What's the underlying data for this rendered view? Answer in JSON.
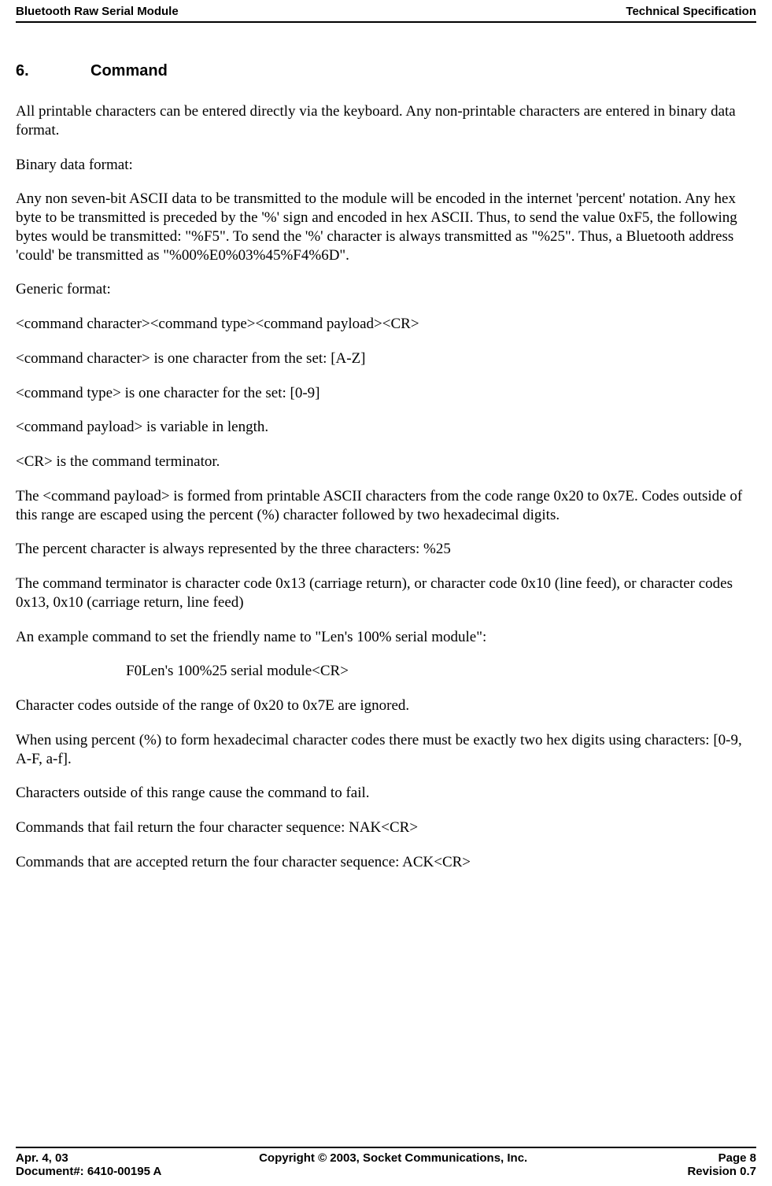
{
  "header": {
    "left": "Bluetooth Raw Serial Module",
    "right": "Technical Specification"
  },
  "section": {
    "number": "6.",
    "title": "Command"
  },
  "paragraphs": {
    "p1": "All printable characters can be entered directly via the keyboard. Any non-printable characters are entered in binary data format.",
    "p2": "Binary data format:",
    "p3": "Any non seven-bit ASCII data to be transmitted to the module will be encoded in the internet 'percent' notation.  Any hex byte to be transmitted is preceded by the '%' sign and encoded in hex ASCII.  Thus, to send the value 0xF5, the following bytes would be transmitted: \"%F5\".  To send the '%' character is always transmitted as \"%25\".  Thus, a Bluetooth address 'could' be transmitted as \"%00%E0%03%45%F4%6D\".",
    "p4": "Generic format:",
    "p5": "<command character><command type><command payload><CR>",
    "p6": "<command character> is one character from the set: [A-Z]",
    "p7": "<command type> is one character for the set: [0-9]",
    "p8": "<command payload> is variable in length.",
    "p9": "<CR> is the command terminator.",
    "p10": "The <command payload> is formed from printable ASCII characters from the code range 0x20 to 0x7E. Codes outside of this range are escaped using the percent (%) character followed by two hexadecimal digits.",
    "p11": "The percent character is always represented by the three characters: %25",
    "p12": "The command terminator is character code 0x13 (carriage return), or character code 0x10 (line feed), or character codes 0x13, 0x10 (carriage return, line feed)",
    "p13": "An example command to set the friendly name to \"Len's 100% serial module\":",
    "p14": "F0Len's 100%25 serial module<CR>",
    "p15": "Character codes outside of the range of 0x20 to 0x7E are ignored.",
    "p16": "When using percent (%) to form hexadecimal character codes there must be exactly two hex digits using characters: [0-9, A-F, a-f].",
    "p17": "Characters outside of this range cause the command to fail.",
    "p18": "Commands that fail return the four character sequence: NAK<CR>",
    "p19": "Commands that are accepted return the four character sequence: ACK<CR>"
  },
  "footer": {
    "date": "Apr. 4, 03",
    "docnum": "Document#: 6410-00195 A",
    "copyright": "Copyright © 2003, Socket Communications, Inc.",
    "page": "Page 8",
    "revision": "Revision 0.7"
  }
}
